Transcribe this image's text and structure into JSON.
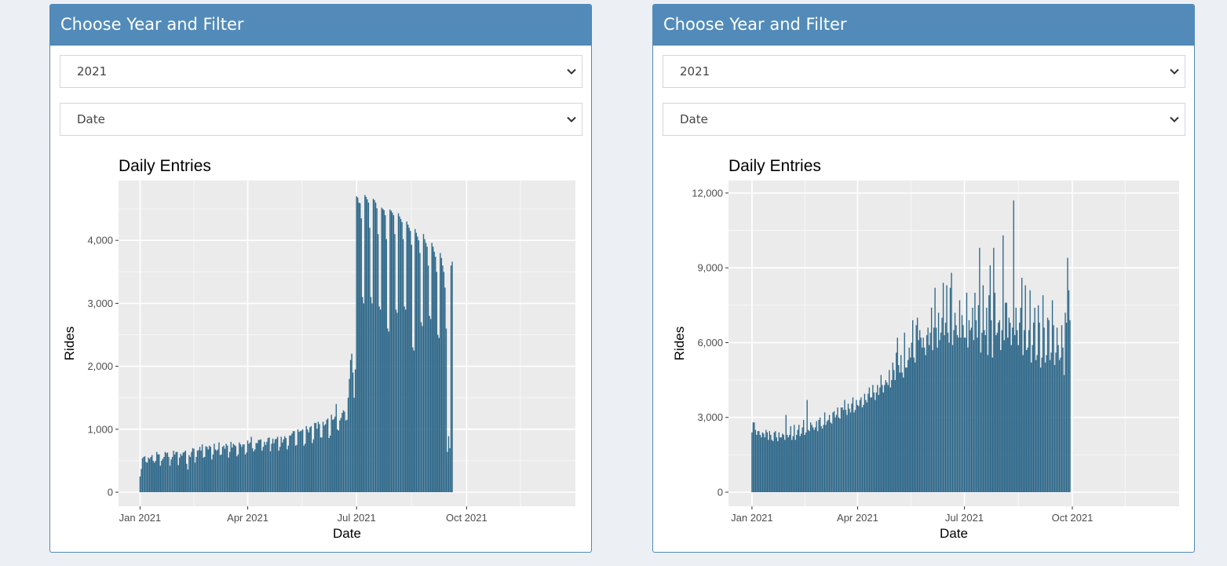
{
  "panels": [
    {
      "header": "Choose Year and Filter",
      "year_select": "2021",
      "filter_select": "Date"
    },
    {
      "header": "Choose Year and Filter",
      "year_select": "2021",
      "filter_select": "Date"
    }
  ],
  "colors": {
    "header_bg": "#528bb9",
    "bar": "#2c6688",
    "plot_bg": "#ebebeb",
    "page_bg": "#ecf0f5"
  },
  "chart_data": [
    {
      "type": "bar",
      "title": "Daily Entries",
      "xlabel": "Date",
      "ylabel": "Rides",
      "x_ticks": [
        "Jan 2021",
        "Apr 2021",
        "Jul 2021",
        "Oct 2021"
      ],
      "y_ticks": [
        "0",
        "1,000",
        "2,000",
        "3,000",
        "4,000"
      ],
      "ylim": [
        0,
        4950
      ],
      "x_range": [
        "2020-12-14",
        "2021-12-31"
      ],
      "grid": true,
      "series": [
        {
          "start": "2021-01-01",
          "values": [
            250,
            370,
            540,
            560,
            570,
            480,
            470,
            550,
            530,
            560,
            590,
            500,
            470,
            500,
            640,
            600,
            600,
            420,
            500,
            530,
            560,
            640,
            620,
            630,
            560,
            420,
            520,
            560,
            660,
            600,
            640,
            640,
            430,
            550,
            610,
            580,
            630,
            640,
            660,
            450,
            360,
            590,
            560,
            640,
            700,
            690,
            470,
            560,
            660,
            670,
            720,
            660,
            760,
            550,
            560,
            730,
            720,
            680,
            740,
            720,
            520,
            600,
            770,
            680,
            660,
            680,
            790,
            590,
            600,
            720,
            740,
            690,
            770,
            740,
            550,
            640,
            800,
            710,
            770,
            750,
            730,
            570,
            600,
            790,
            760,
            720,
            760,
            760,
            600,
            630,
            820,
            770,
            790,
            880,
            700,
            650,
            680,
            780,
            780,
            830,
            830,
            840,
            660,
            720,
            800,
            750,
            800,
            860,
            870,
            650,
            770,
            850,
            780,
            840,
            850,
            880,
            660,
            720,
            880,
            790,
            840,
            890,
            860,
            680,
            740,
            900,
            900,
            930,
            970,
            970,
            740,
            750,
            1000,
            960,
            970,
            980,
            1000,
            740,
            770,
            1050,
            1000,
            950,
            1030,
            1050,
            780,
            840,
            1100,
            1100,
            1010,
            1120,
            1080,
            870,
            870,
            1120,
            1060,
            1080,
            1150,
            1170,
            860,
            900,
            1230,
            1150,
            1160,
            1200,
            1400,
            1000,
            980,
            1140,
            1180,
            1260,
            1300,
            1280,
            1140,
            1150,
            1500,
            1800,
            2100,
            2200,
            1900,
            1500,
            1950,
            4700,
            4680,
            4600,
            4590,
            4350,
            3100,
            3000,
            4720,
            4690,
            4650,
            4600,
            4200,
            3100,
            3000,
            4660,
            4640,
            4600,
            4510,
            4100,
            2950,
            2900,
            4520,
            4500,
            4480,
            4400,
            4020,
            2600,
            2550,
            4490,
            4470,
            4440,
            4400,
            4100,
            2900,
            2850,
            4430,
            4380,
            4340,
            4290,
            4020,
            2950,
            2900,
            4300,
            4250,
            4200,
            4150,
            3930,
            2300,
            2250,
            4180,
            4120,
            4060,
            4000,
            3800,
            2700,
            2640,
            4100,
            4020,
            3960,
            3900,
            3600,
            2800,
            2750,
            3960,
            3900,
            3820,
            3740,
            3500,
            2500,
            2450,
            3800,
            3720,
            3600,
            3500,
            3250,
            2600,
            640,
            890,
            700,
            3600,
            3660
          ]
        }
      ]
    },
    {
      "type": "bar",
      "title": "Daily Entries",
      "xlabel": "Date",
      "ylabel": "Rides",
      "x_ticks": [
        "Jan 2021",
        "Apr 2021",
        "Jul 2021",
        "Oct 2021"
      ],
      "y_ticks": [
        "0",
        "3,000",
        "6,000",
        "9,000",
        "12,000"
      ],
      "ylim": [
        0,
        12500
      ],
      "x_range": [
        "2020-12-12",
        "2021-12-31"
      ],
      "grid": true,
      "series": [
        {
          "start": "2021-01-01",
          "values": [
            2400,
            2800,
            2800,
            2500,
            2300,
            2450,
            2450,
            2300,
            2200,
            2400,
            2350,
            2200,
            2500,
            2400,
            2100,
            2450,
            2300,
            2100,
            2050,
            2400,
            2450,
            2200,
            2050,
            2400,
            2200,
            2200,
            2350,
            2300,
            2100,
            3100,
            2300,
            2200,
            2300,
            2650,
            2100,
            2250,
            2700,
            2100,
            2300,
            2500,
            2700,
            2250,
            2350,
            2600,
            2900,
            2300,
            2400,
            3700,
            2500,
            2450,
            2800,
            2700,
            2600,
            2500,
            2600,
            2850,
            2450,
            2900,
            3000,
            2650,
            2550,
            2700,
            3200,
            2700,
            2850,
            2900,
            3100,
            2800,
            2750,
            3200,
            3250,
            3000,
            3100,
            3400,
            3000,
            2950,
            3400,
            3400,
            3300,
            3700,
            3300,
            3100,
            3550,
            3350,
            3200,
            3550,
            3800,
            3200,
            3300,
            3700,
            3500,
            3450,
            3700,
            3800,
            3400,
            3500,
            3950,
            3700,
            3600,
            3950,
            4200,
            3800,
            3800,
            4300,
            4000,
            3700,
            4000,
            4300,
            3900,
            4200,
            4700,
            4300,
            4000,
            4300,
            4500,
            4400,
            4300,
            4900,
            4200,
            4500,
            5200,
            4900,
            4500,
            5600,
            6200,
            5100,
            4800,
            5500,
            4800,
            4600,
            6400,
            5000,
            5000,
            5300,
            5800,
            5400,
            6000,
            6900,
            5400,
            5200,
            6700,
            7000,
            6100,
            6500,
            6200,
            5800,
            6200,
            5800,
            5500,
            6300,
            6600,
            5900,
            6400,
            7400,
            5700,
            6600,
            8200,
            6600,
            5800,
            7200,
            6100,
            6400,
            7000,
            8400,
            6300,
            6800,
            8300,
            6400,
            6000,
            8200,
            8800,
            5900,
            6500,
            7200,
            6700,
            6300,
            6200,
            7700,
            6200,
            7100,
            6700,
            6200,
            6200,
            8000,
            5800,
            6900,
            6500,
            6600,
            7400,
            6100,
            8000,
            6900,
            6200,
            7500,
            9800,
            5600,
            6400,
            8300,
            6500,
            6300,
            7400,
            5500,
            7900,
            9100,
            6900,
            5400,
            9800,
            8000,
            6300,
            6400,
            6800,
            6900,
            5700,
            6500,
            10300,
            6100,
            7600,
            7600,
            6200,
            7000,
            6800,
            5900,
            6600,
            11700,
            6300,
            7400,
            6500,
            5900,
            6800,
            7400,
            8600,
            5500,
            6500,
            8300,
            5700,
            5800,
            6500,
            8100,
            5200,
            5900,
            6800,
            7400,
            5300,
            5500,
            7500,
            6800,
            5000,
            5400,
            7900,
            6600,
            5200,
            5500,
            7000,
            6900,
            5300,
            5600,
            7700,
            6700,
            5100,
            5600,
            6600,
            5900,
            5300,
            5400,
            6700,
            5800,
            4700,
            7200,
            6800,
            9400,
            8100,
            6900
          ]
        }
      ]
    }
  ]
}
